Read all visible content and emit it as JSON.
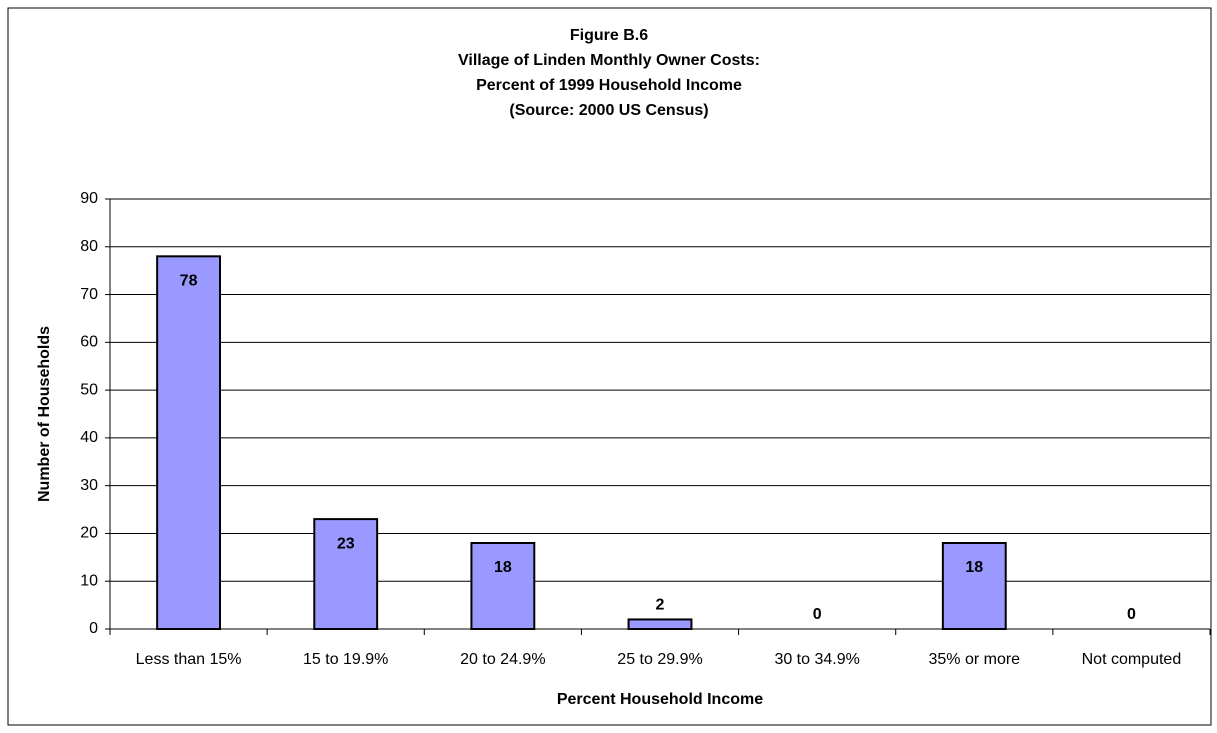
{
  "chart_data": {
    "type": "bar",
    "title": [
      "Figure B.6",
      "Village of Linden Monthly Owner Costs:",
      "Percent of 1999 Household Income",
      "(Source:  2000 US Census)"
    ],
    "x_label": "Percent Household Income",
    "y_label": "Number of Households",
    "categories": [
      "Less than 15%",
      "15 to 19.9%",
      "20 to 24.9%",
      "25 to 29.9%",
      "30 to 34.9%",
      "35% or more",
      "Not computed"
    ],
    "values": [
      78,
      23,
      18,
      2,
      0,
      18,
      0
    ],
    "color": "#9999ff",
    "ylim": [
      0,
      90
    ],
    "yticks": [
      0,
      10,
      20,
      30,
      40,
      50,
      60,
      70,
      80,
      90
    ],
    "grid": true
  }
}
